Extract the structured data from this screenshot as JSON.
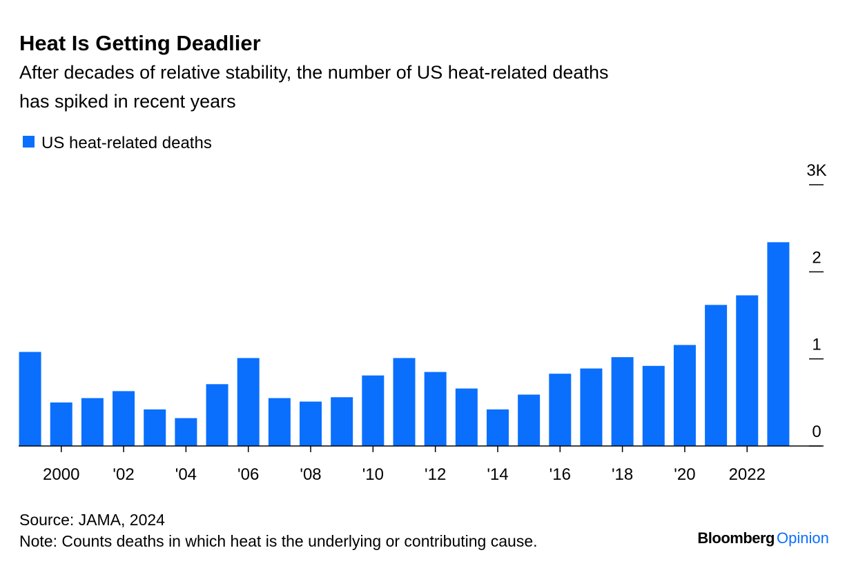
{
  "chart_data": {
    "type": "bar",
    "title": "Heat Is Getting Deadlier",
    "subtitle": [
      "After decades of relative stability, the number of US heat-related deaths",
      "has spiked in recent years"
    ],
    "categories": [
      null,
      "2000",
      null,
      "'02",
      null,
      "'04",
      null,
      "'06",
      null,
      "'08",
      null,
      "'10",
      null,
      "'12",
      null,
      "'14",
      null,
      "'16",
      null,
      "'18",
      null,
      "'20",
      null,
      "2022",
      null
    ],
    "series": [
      {
        "name": "US heat-related deaths",
        "color": "#0a6ffd",
        "values": [
          1.08,
          0.5,
          0.55,
          0.63,
          0.42,
          0.32,
          0.71,
          1.01,
          0.55,
          0.51,
          0.56,
          0.81,
          1.01,
          0.85,
          0.66,
          0.42,
          0.59,
          0.83,
          0.89,
          1.02,
          0.92,
          1.16,
          1.62,
          1.73,
          2.34
        ]
      }
    ],
    "ylim": [
      0,
      3
    ],
    "yticks": [
      0,
      1,
      2,
      {
        "value": 3,
        "label": "3K"
      }
    ],
    "source": "Source: JAMA, 2024",
    "note": "Note: Counts deaths in which heat is the underlying or contributing cause.",
    "brand": "Bloomberg",
    "brand_sub": "Opinion"
  }
}
